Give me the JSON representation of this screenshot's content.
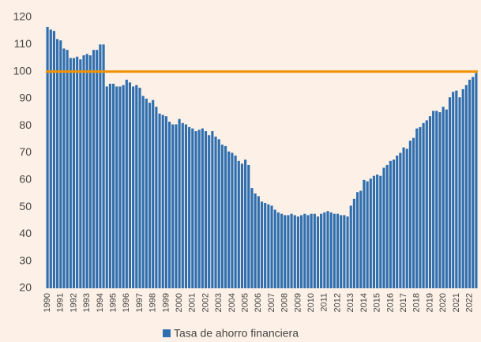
{
  "chart_data": {
    "type": "bar",
    "categories": [
      "1990",
      null,
      null,
      null,
      "1991",
      null,
      null,
      null,
      "1992",
      null,
      null,
      null,
      "1993",
      null,
      null,
      null,
      "1994",
      null,
      null,
      null,
      "1995",
      null,
      null,
      null,
      "1996",
      null,
      null,
      null,
      "1997",
      null,
      null,
      null,
      "1998",
      null,
      null,
      null,
      "1999",
      null,
      null,
      null,
      "2000",
      null,
      null,
      null,
      "2001",
      null,
      null,
      null,
      "2002",
      null,
      null,
      null,
      "2003",
      null,
      null,
      null,
      "2004",
      null,
      null,
      null,
      "2005",
      null,
      null,
      null,
      "2006",
      null,
      null,
      null,
      "2007",
      null,
      null,
      null,
      "2008",
      null,
      null,
      null,
      "2009",
      null,
      null,
      null,
      "2010",
      null,
      null,
      null,
      "2011",
      null,
      null,
      null,
      "2012",
      null,
      null,
      null,
      "2013",
      null,
      null,
      null,
      "2014",
      null,
      null,
      null,
      "2015",
      null,
      null,
      null,
      "2016",
      null,
      null,
      null,
      "2017",
      null,
      null,
      null,
      "2018",
      null,
      null,
      null,
      "2019",
      null,
      null,
      null,
      "2020",
      null,
      null,
      null,
      "2021",
      null,
      null,
      null,
      "2022",
      null,
      null
    ],
    "series": [
      {
        "name": "Tasa de ahorro financiera",
        "color": "#2f6fb0",
        "values": [
          116.5,
          115.5,
          115,
          112,
          111.5,
          108.5,
          108,
          105,
          105,
          105.5,
          104.5,
          106,
          106.5,
          106,
          108,
          108,
          110,
          110,
          94.5,
          95.5,
          95.5,
          94.5,
          94.5,
          95,
          97,
          96,
          94.5,
          95,
          94,
          91,
          90,
          88.5,
          89.5,
          87,
          84.5,
          84,
          83.5,
          81.5,
          80.5,
          80.5,
          82.5,
          81,
          80.5,
          79.5,
          79,
          78,
          78.5,
          79,
          78,
          76.5,
          78,
          76,
          75,
          73,
          72.5,
          70.5,
          70,
          69,
          67,
          66,
          67.5,
          65.5,
          57,
          55,
          54,
          52,
          51.5,
          51,
          50.5,
          49,
          48,
          47.5,
          47,
          47,
          47.5,
          47,
          46.5,
          47,
          47.5,
          47,
          47.5,
          47.5,
          46.5,
          47.5,
          48,
          48.5,
          48,
          47.5,
          47.5,
          47,
          47,
          46.5,
          50.5,
          53,
          55.5,
          56,
          60,
          59.5,
          60.5,
          61.5,
          62,
          61.5,
          64.5,
          65.5,
          67,
          67.5,
          69,
          70,
          72,
          71.5,
          74.5,
          75.5,
          79,
          79.5,
          81,
          82,
          83.5,
          85.5,
          85.5,
          85,
          87,
          86,
          90.5,
          92.5,
          93,
          90.5,
          93.5,
          95,
          97,
          98,
          99.5
        ]
      }
    ],
    "reference_line": {
      "value": 100,
      "color": "#f39200"
    },
    "ylim": [
      20,
      120
    ],
    "yticks": [
      20,
      30,
      40,
      50,
      60,
      70,
      80,
      90,
      100,
      110,
      120
    ]
  }
}
